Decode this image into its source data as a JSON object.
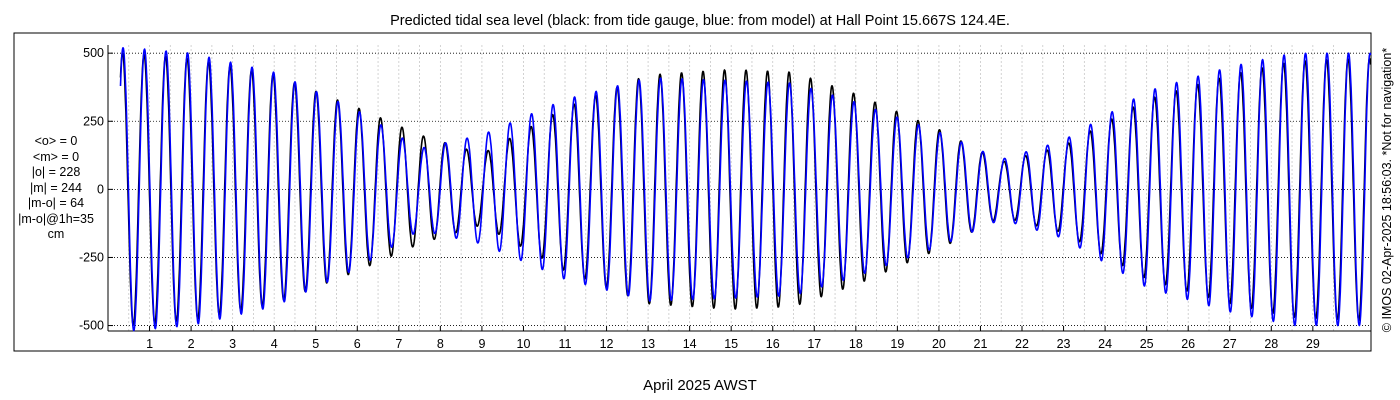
{
  "chart_data": {
    "type": "line",
    "title": "Predicted tidal sea level (black: from tide gauge, blue: from model) at Hall Point 15.667S 124.4E.",
    "xlabel": "April 2025 AWST",
    "ylabel": "",
    "xlim": [
      0,
      30.4
    ],
    "ylim": [
      -520,
      530
    ],
    "yticks": [
      -500,
      -250,
      0,
      250,
      500
    ],
    "ytick_labels": [
      "-500",
      "-250",
      "0",
      "250",
      "500"
    ],
    "xticks": [
      1,
      2,
      3,
      4,
      5,
      6,
      7,
      8,
      9,
      10,
      11,
      12,
      13,
      14,
      15,
      16,
      17,
      18,
      19,
      20,
      21,
      22,
      23,
      24,
      25,
      26,
      27,
      28,
      29
    ],
    "xtick_labels": [
      "1",
      "2",
      "3",
      "4",
      "5",
      "6",
      "7",
      "8",
      "9",
      "10",
      "11",
      "12",
      "13",
      "14",
      "15",
      "16",
      "17",
      "18",
      "19",
      "20",
      "21",
      "22",
      "23",
      "24",
      "25",
      "26",
      "27",
      "28",
      "29"
    ],
    "grid": true,
    "series": [
      {
        "name": "tide gauge",
        "color": "#000000",
        "x_start": 0.3,
        "x_end": 30.4,
        "amplitude_day": [
          0.5,
          2,
          4,
          6,
          7.5,
          9,
          11,
          13,
          15,
          16.5,
          18,
          20,
          21.5,
          23,
          25,
          27,
          28.5,
          30
        ],
        "amplitude_cm": [
          500,
          480,
          420,
          300,
          200,
          130,
          300,
          420,
          440,
          430,
          350,
          220,
          100,
          160,
          330,
          420,
          470,
          480
        ]
      },
      {
        "name": "model",
        "color": "#0000ff",
        "x_start": 0.3,
        "x_end": 30.4,
        "amplitude_day": [
          0.5,
          2,
          4,
          6,
          7.5,
          9,
          11,
          13,
          15,
          16.5,
          18,
          20,
          21.5,
          23,
          25,
          27,
          28.5,
          30
        ],
        "amplitude_cm": [
          520,
          500,
          430,
          290,
          150,
          200,
          330,
          410,
          400,
          390,
          320,
          210,
          110,
          180,
          360,
          450,
          500,
          500
        ]
      }
    ]
  },
  "stats": [
    "<o> = 0",
    "<m> = 0",
    "|o| = 228",
    "|m| = 244",
    "|m-o| = 64",
    "|m-o|@1h=35",
    "cm"
  ],
  "copyright": "© IMOS 02-Apr-2025 18:56:03. *Not for navigation*"
}
